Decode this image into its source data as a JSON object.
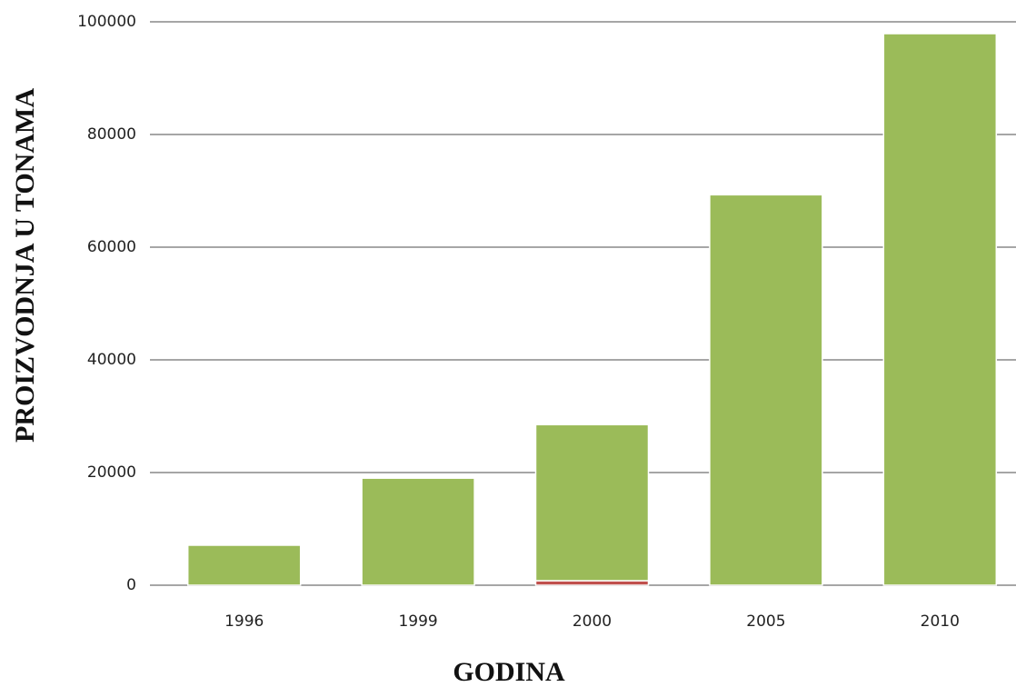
{
  "chart_data": {
    "type": "bar",
    "stacked": true,
    "x_label": "GODINA",
    "y_label": "PROIZVODNJA U TONAMA",
    "categories": [
      "1996",
      "1999",
      "2000",
      "2005",
      "2010"
    ],
    "series": [
      {
        "color": "#c0504d",
        "values": [
          null,
          null,
          800,
          null,
          null
        ]
      },
      {
        "color": "#9bbb59",
        "values": [
          7100,
          19000,
          27700,
          69300,
          97900
        ]
      }
    ],
    "ylim": [
      0,
      100000
    ],
    "yticks": [
      0,
      20000,
      40000,
      60000,
      80000,
      100000
    ],
    "grid": true
  }
}
